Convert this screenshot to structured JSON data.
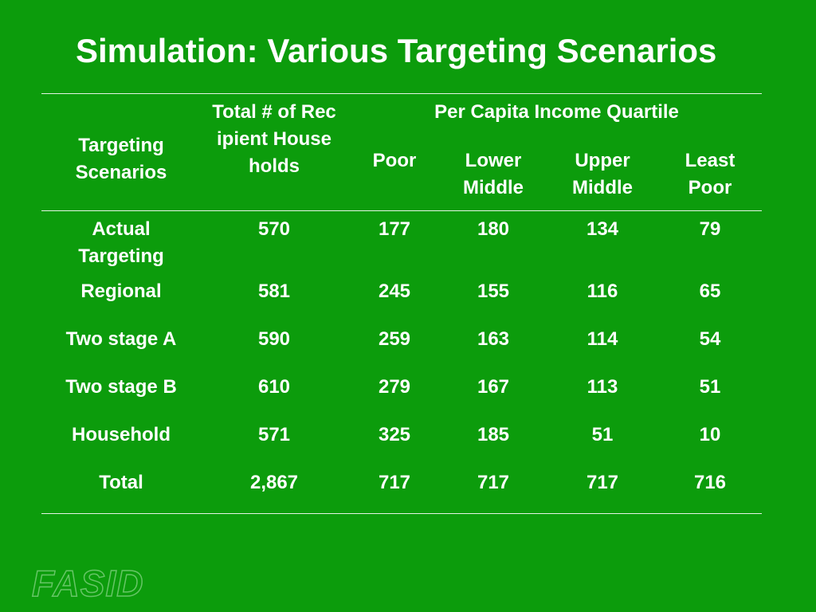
{
  "title": "Simulation: Various Targeting Scenarios",
  "table": {
    "headers": {
      "scenario": "Targeting Scenarios",
      "total": "Total  # of Recipient Households",
      "group": "Per Capita Income Quartile",
      "quartiles": [
        "Poor",
        "Lower Middle",
        "Upper Middle",
        "Least Poor"
      ]
    },
    "rows": [
      {
        "scenario": "Actual Targeting",
        "total": "570",
        "poor": "177",
        "lower_middle": "180",
        "upper_middle": "134",
        "least_poor": "79"
      },
      {
        "scenario": "Regional",
        "total": "581",
        "poor": "245",
        "lower_middle": "155",
        "upper_middle": "116",
        "least_poor": "65"
      },
      {
        "scenario": "Two stage A",
        "total": "590",
        "poor": "259",
        "lower_middle": "163",
        "upper_middle": "114",
        "least_poor": "54"
      },
      {
        "scenario": "Two stage B",
        "total": "610",
        "poor": "279",
        "lower_middle": "167",
        "upper_middle": "113",
        "least_poor": "51"
      },
      {
        "scenario": "Household",
        "total": "571",
        "poor": "325",
        "lower_middle": "185",
        "upper_middle": "51",
        "least_poor": "10"
      },
      {
        "scenario": "Total",
        "total": "2,867",
        "poor": "717",
        "lower_middle": "717",
        "upper_middle": "717",
        "least_poor": "716"
      }
    ]
  },
  "logo": "FASID",
  "colors": {
    "background": "#0c9c0c",
    "text": "#ffffff"
  }
}
